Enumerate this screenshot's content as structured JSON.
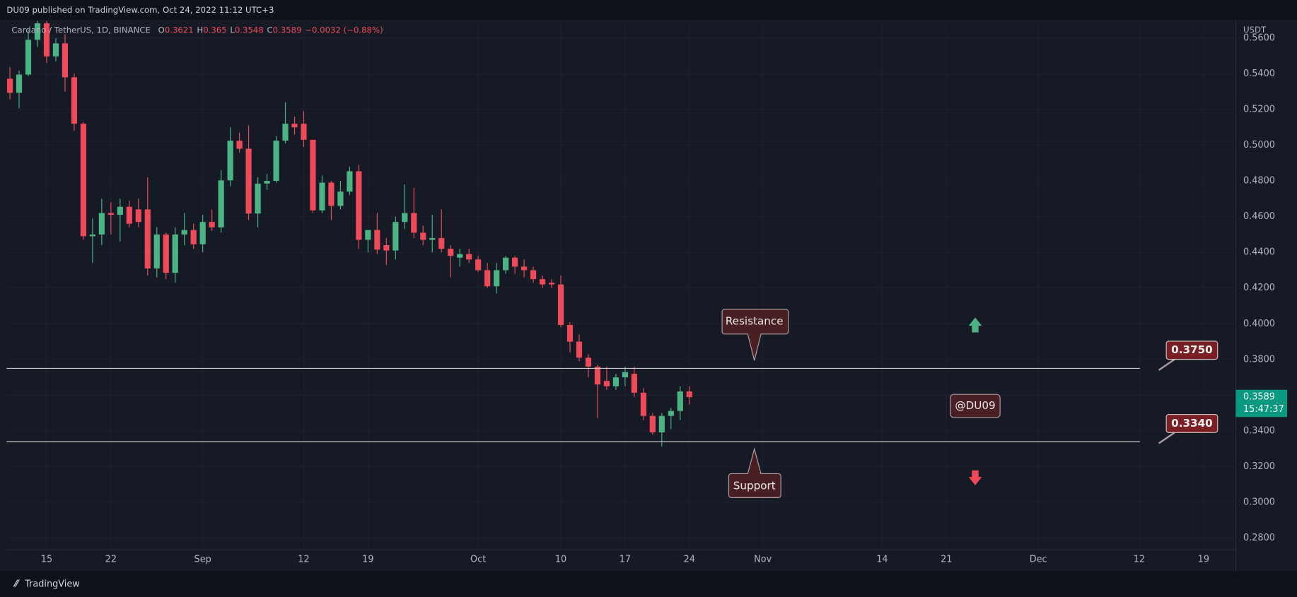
{
  "chart_data": {
    "type": "candlestick",
    "header": "DU09 published on TradingView.com, Oct 24, 2022 11:12 UTC+3",
    "symbol": "Cardano / TetherUS, 1D, BINANCE",
    "ohlc_labels": [
      "O",
      "H",
      "L",
      "C"
    ],
    "change": "−0.0032 (−0.88%)",
    "axis_unit": "USDT",
    "up_color": "#4bb384",
    "down_color": "#ef4a5a",
    "ohlc": [
      [
        0.5372,
        0.5437,
        0.5257,
        0.5293
      ],
      [
        0.5293,
        0.5418,
        0.5206,
        0.5395
      ],
      [
        0.5395,
        0.5645,
        0.5386,
        0.559
      ],
      [
        0.559,
        0.57,
        0.555,
        0.5682
      ],
      [
        0.5682,
        0.57,
        0.546,
        0.5497
      ],
      [
        0.5497,
        0.56,
        0.547,
        0.557
      ],
      [
        0.557,
        0.562,
        0.53,
        0.538
      ],
      [
        0.538,
        0.54,
        0.508,
        0.512
      ],
      [
        0.512,
        0.513,
        0.447,
        0.449
      ],
      [
        0.449,
        0.459,
        0.434,
        0.45
      ],
      [
        0.45,
        0.47,
        0.444,
        0.462
      ],
      [
        0.462,
        0.468,
        0.45,
        0.461
      ],
      [
        0.461,
        0.47,
        0.446,
        0.4655
      ],
      [
        0.4655,
        0.469,
        0.454,
        0.456
      ],
      [
        0.464,
        0.47,
        0.454,
        0.457
      ],
      [
        0.464,
        0.482,
        0.427,
        0.431
      ],
      [
        0.431,
        0.454,
        0.426,
        0.45
      ],
      [
        0.45,
        0.451,
        0.425,
        0.4285
      ],
      [
        0.4285,
        0.454,
        0.423,
        0.45
      ],
      [
        0.45,
        0.462,
        0.444,
        0.4525
      ],
      [
        0.4525,
        0.456,
        0.442,
        0.4445
      ],
      [
        0.4445,
        0.461,
        0.44,
        0.457
      ],
      [
        0.457,
        0.464,
        0.452,
        0.454
      ],
      [
        0.454,
        0.486,
        0.451,
        0.4803
      ],
      [
        0.4803,
        0.51,
        0.477,
        0.5025
      ],
      [
        0.5025,
        0.507,
        0.496,
        0.498
      ],
      [
        0.498,
        0.511,
        0.458,
        0.4617
      ],
      [
        0.4617,
        0.482,
        0.454,
        0.4785
      ],
      [
        0.4785,
        0.484,
        0.475,
        0.48
      ],
      [
        0.48,
        0.505,
        0.479,
        0.5025
      ],
      [
        0.5025,
        0.524,
        0.501,
        0.512
      ],
      [
        0.512,
        0.516,
        0.506,
        0.51
      ],
      [
        0.512,
        0.519,
        0.499,
        0.503
      ],
      [
        0.503,
        0.503,
        0.462,
        0.4635
      ],
      [
        0.4635,
        0.483,
        0.462,
        0.479
      ],
      [
        0.479,
        0.48,
        0.458,
        0.466
      ],
      [
        0.466,
        0.48,
        0.464,
        0.474
      ],
      [
        0.474,
        0.488,
        0.472,
        0.4854
      ],
      [
        0.4854,
        0.489,
        0.442,
        0.447
      ],
      [
        0.447,
        0.452,
        0.44,
        0.4525
      ],
      [
        0.4525,
        0.462,
        0.439,
        0.4415
      ],
      [
        0.444,
        0.448,
        0.433,
        0.441
      ],
      [
        0.441,
        0.46,
        0.436,
        0.457
      ],
      [
        0.457,
        0.478,
        0.453,
        0.462
      ],
      [
        0.462,
        0.476,
        0.448,
        0.451
      ],
      [
        0.451,
        0.455,
        0.444,
        0.447
      ],
      [
        0.447,
        0.461,
        0.44,
        0.448
      ],
      [
        0.448,
        0.464,
        0.44,
        0.442
      ],
      [
        0.442,
        0.444,
        0.426,
        0.438
      ],
      [
        0.437,
        0.442,
        0.432,
        0.439
      ],
      [
        0.439,
        0.442,
        0.434,
        0.436
      ],
      [
        0.436,
        0.438,
        0.429,
        0.43
      ],
      [
        0.43,
        0.434,
        0.42,
        0.421
      ],
      [
        0.421,
        0.434,
        0.417,
        0.43
      ],
      [
        0.43,
        0.438,
        0.428,
        0.437
      ],
      [
        0.437,
        0.438,
        0.428,
        0.432
      ],
      [
        0.432,
        0.436,
        0.426,
        0.43
      ],
      [
        0.43,
        0.432,
        0.423,
        0.425
      ],
      [
        0.425,
        0.427,
        0.42,
        0.422
      ],
      [
        0.423,
        0.425,
        0.42,
        0.422
      ],
      [
        0.422,
        0.427,
        0.398,
        0.3993
      ],
      [
        0.3993,
        0.401,
        0.384,
        0.39
      ],
      [
        0.39,
        0.394,
        0.379,
        0.381
      ],
      [
        0.381,
        0.383,
        0.37,
        0.376
      ],
      [
        0.376,
        0.377,
        0.347,
        0.366
      ],
      [
        0.368,
        0.376,
        0.363,
        0.365
      ],
      [
        0.365,
        0.372,
        0.363,
        0.37
      ],
      [
        0.37,
        0.376,
        0.365,
        0.373
      ],
      [
        0.372,
        0.376,
        0.359,
        0.3614
      ],
      [
        0.3614,
        0.364,
        0.346,
        0.3484
      ],
      [
        0.3484,
        0.35,
        0.338,
        0.3392
      ],
      [
        0.3392,
        0.35,
        0.3313,
        0.3484
      ],
      [
        0.3484,
        0.353,
        0.341,
        0.3512
      ],
      [
        0.3512,
        0.365,
        0.346,
        0.3621
      ],
      [
        0.3621,
        0.365,
        0.3548,
        0.3589
      ]
    ],
    "ylim": [
      0.2735,
      0.5696
    ],
    "yticks": [
      {
        "value": 0.28,
        "label": "0.2800"
      },
      {
        "value": 0.3,
        "label": "0.3000"
      },
      {
        "value": 0.32,
        "label": "0.3200"
      },
      {
        "value": 0.34,
        "label": "0.3400"
      },
      {
        "value": 0.36,
        "label": "0.3600"
      },
      {
        "value": 0.38,
        "label": "0.3800"
      },
      {
        "value": 0.4,
        "label": "0.4000"
      },
      {
        "value": 0.42,
        "label": "0.4200"
      },
      {
        "value": 0.44,
        "label": "0.4400"
      },
      {
        "value": 0.46,
        "label": "0.4600"
      },
      {
        "value": 0.48,
        "label": "0.4800"
      },
      {
        "value": 0.5,
        "label": "0.5000"
      },
      {
        "value": 0.52,
        "label": "0.5200"
      },
      {
        "value": 0.54,
        "label": "0.5400"
      },
      {
        "value": 0.56,
        "label": "0.5600"
      }
    ],
    "xticks": [
      {
        "value": 4,
        "label": "15"
      },
      {
        "value": 11,
        "label": "22"
      },
      {
        "value": 21,
        "label": "Sep"
      },
      {
        "value": 32,
        "label": "12"
      },
      {
        "value": 39,
        "label": "19"
      },
      {
        "value": 51,
        "label": "Oct"
      },
      {
        "value": 60,
        "label": "10"
      },
      {
        "value": 67,
        "label": "17"
      },
      {
        "value": 74,
        "label": "24"
      },
      {
        "value": 82,
        "label": "Nov"
      },
      {
        "value": 95,
        "label": "14"
      },
      {
        "value": 102,
        "label": "21"
      },
      {
        "value": 112,
        "label": "Dec"
      },
      {
        "value": 123,
        "label": "12"
      },
      {
        "value": 130,
        "label": "19"
      }
    ],
    "levels": [
      {
        "value": 0.375,
        "label": "0.3750"
      },
      {
        "value": 0.334,
        "label": "0.3340"
      }
    ],
    "annotations": {
      "resistance": "Resistance",
      "support": "Support",
      "watermark": "@DU09"
    },
    "countdown": "15:47:37",
    "footer": "TradingView"
  }
}
